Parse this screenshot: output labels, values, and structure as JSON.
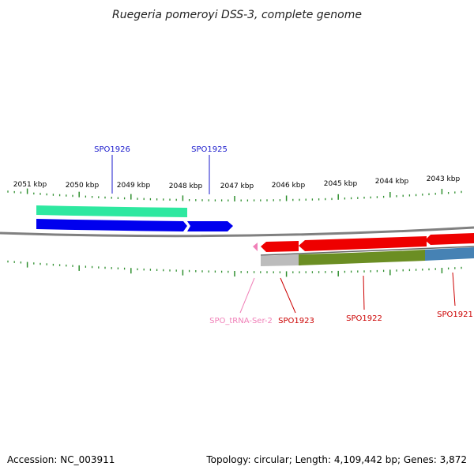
{
  "title": "Ruegeria pomeroyi DSS-3, complete genome",
  "footer": {
    "accession": "Accession: NC_003911",
    "summary": "Topology: circular; Length: 4,109,442 bp; Genes: 3,872"
  },
  "colors": {
    "tick": "#2f8f2f",
    "backbone": "#808080",
    "label_forward": "#1a1acc",
    "label_reverse": "#cc0000",
    "label_trna": "#f080b8",
    "gene_cyan": "#2ee8a0",
    "gene_blue": "#0000ee",
    "gene_red": "#ee0000",
    "gene_gray": "#bcbcbc",
    "gene_olive": "#6b8e23",
    "gene_steel": "#4682b4",
    "gene_pink": "#f080b8"
  },
  "ticks": {
    "labels": [
      "2051 kbp",
      "2050 kbp",
      "2049 kbp",
      "2048 kbp",
      "2047 kbp",
      "2046 kbp",
      "2045 kbp",
      "2044 kbp",
      "2043 kbp"
    ]
  },
  "genes": [
    {
      "id": "spo1926",
      "label": "SPO1926",
      "strand": "forward",
      "color_key": "label_forward"
    },
    {
      "id": "spo1925",
      "label": "SPO1925",
      "strand": "forward",
      "color_key": "label_forward"
    },
    {
      "id": "spo-trna-ser-2",
      "label": "SPO_tRNA-Ser-2",
      "strand": "reverse",
      "color_key": "label_trna"
    },
    {
      "id": "spo1923",
      "label": "SPO1923",
      "strand": "reverse",
      "color_key": "label_reverse"
    },
    {
      "id": "spo1922",
      "label": "SPO1922",
      "strand": "reverse",
      "color_key": "label_reverse"
    },
    {
      "id": "spo1921",
      "label": "SPO1921",
      "strand": "reverse",
      "color_key": "label_reverse"
    }
  ]
}
